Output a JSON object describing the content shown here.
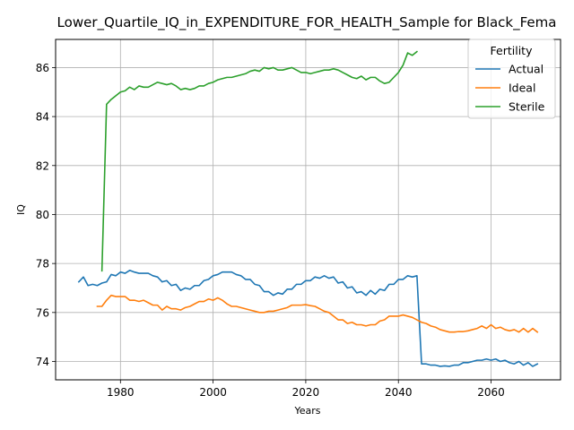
{
  "chart_data": {
    "type": "line",
    "title": "Lower_Quartile_IQ_in_EXPENDITURE_FOR_HEALTH_Sample for Black_Fema",
    "xlabel": "Years",
    "ylabel": "IQ",
    "xlim": [
      1966,
      2075
    ],
    "ylim": [
      73.25,
      87.15
    ],
    "xticks": [
      1980,
      2000,
      2020,
      2040,
      2060
    ],
    "yticks": [
      74,
      76,
      78,
      80,
      82,
      84,
      86
    ],
    "grid": true,
    "legend": {
      "title": "Fertility",
      "placement": "top-right"
    },
    "series": [
      {
        "name": "Actual",
        "color": "#1f77b4",
        "x": [
          1971,
          1972,
          1973,
          1974,
          1975,
          1976,
          1977,
          1978,
          1979,
          1980,
          1981,
          1982,
          1983,
          1984,
          1985,
          1986,
          1987,
          1988,
          1989,
          1990,
          1991,
          1992,
          1993,
          1994,
          1995,
          1996,
          1997,
          1998,
          1999,
          2000,
          2001,
          2002,
          2003,
          2004,
          2005,
          2006,
          2007,
          2008,
          2009,
          2010,
          2011,
          2012,
          2013,
          2014,
          2015,
          2016,
          2017,
          2018,
          2019,
          2020,
          2021,
          2022,
          2023,
          2024,
          2025,
          2026,
          2027,
          2028,
          2029,
          2030,
          2031,
          2032,
          2033,
          2034,
          2035,
          2036,
          2037,
          2038,
          2039,
          2040,
          2041,
          2042,
          2043,
          2044,
          2045,
          2046,
          2047,
          2048,
          2049,
          2050,
          2051,
          2052,
          2053,
          2054,
          2055,
          2056,
          2057,
          2058,
          2059,
          2060,
          2061,
          2062,
          2063,
          2064,
          2065,
          2066,
          2067,
          2068,
          2069,
          2070
        ],
        "values": [
          77.25,
          77.45,
          77.1,
          77.15,
          77.1,
          77.2,
          77.25,
          77.55,
          77.5,
          77.65,
          77.6,
          77.72,
          77.65,
          77.6,
          77.6,
          77.6,
          77.5,
          77.45,
          77.25,
          77.3,
          77.1,
          77.15,
          76.9,
          77.0,
          76.95,
          77.1,
          77.1,
          77.3,
          77.35,
          77.5,
          77.55,
          77.65,
          77.65,
          77.65,
          77.55,
          77.5,
          77.35,
          77.35,
          77.15,
          77.1,
          76.85,
          76.85,
          76.7,
          76.8,
          76.75,
          76.95,
          76.95,
          77.15,
          77.15,
          77.3,
          77.3,
          77.45,
          77.4,
          77.5,
          77.4,
          77.45,
          77.2,
          77.25,
          77.0,
          77.05,
          76.8,
          76.85,
          76.7,
          76.9,
          76.75,
          76.95,
          76.9,
          77.15,
          77.15,
          77.35,
          77.35,
          77.5,
          77.45,
          77.5,
          73.9,
          73.9,
          73.85,
          73.85,
          73.8,
          73.82,
          73.8,
          73.85,
          73.85,
          73.95,
          73.95,
          74.0,
          74.05,
          74.05,
          74.1,
          74.05,
          74.1,
          74.0,
          74.05,
          73.95,
          73.9,
          74.0,
          73.85,
          73.95,
          73.8,
          73.9
        ]
      },
      {
        "name": "Ideal",
        "color": "#ff7f0e",
        "x": [
          1975,
          1976,
          1977,
          1978,
          1979,
          1980,
          1981,
          1982,
          1983,
          1984,
          1985,
          1986,
          1987,
          1988,
          1989,
          1990,
          1991,
          1992,
          1993,
          1994,
          1995,
          1996,
          1997,
          1998,
          1999,
          2000,
          2001,
          2002,
          2003,
          2004,
          2005,
          2006,
          2007,
          2008,
          2009,
          2010,
          2011,
          2012,
          2013,
          2014,
          2015,
          2016,
          2017,
          2018,
          2019,
          2020,
          2021,
          2022,
          2023,
          2024,
          2025,
          2026,
          2027,
          2028,
          2029,
          2030,
          2031,
          2032,
          2033,
          2034,
          2035,
          2036,
          2037,
          2038,
          2039,
          2040,
          2041,
          2042,
          2043,
          2044,
          2045,
          2046,
          2047,
          2048,
          2049,
          2050,
          2051,
          2052,
          2053,
          2054,
          2055,
          2056,
          2057,
          2058,
          2059,
          2060,
          2061,
          2062,
          2063,
          2064,
          2065,
          2066,
          2067,
          2068,
          2069,
          2070
        ],
        "values": [
          76.25,
          76.25,
          76.5,
          76.7,
          76.65,
          76.65,
          76.65,
          76.5,
          76.5,
          76.45,
          76.5,
          76.4,
          76.3,
          76.3,
          76.1,
          76.25,
          76.15,
          76.15,
          76.1,
          76.2,
          76.25,
          76.35,
          76.45,
          76.45,
          76.55,
          76.5,
          76.6,
          76.5,
          76.35,
          76.25,
          76.25,
          76.2,
          76.15,
          76.1,
          76.05,
          76.0,
          76.0,
          76.05,
          76.05,
          76.1,
          76.15,
          76.2,
          76.3,
          76.3,
          76.3,
          76.32,
          76.28,
          76.25,
          76.15,
          76.05,
          76.0,
          75.85,
          75.7,
          75.7,
          75.55,
          75.6,
          75.5,
          75.5,
          75.45,
          75.5,
          75.5,
          75.65,
          75.7,
          75.85,
          75.85,
          75.85,
          75.9,
          75.85,
          75.8,
          75.7,
          75.6,
          75.55,
          75.45,
          75.4,
          75.3,
          75.25,
          75.2,
          75.2,
          75.22,
          75.22,
          75.25,
          75.3,
          75.35,
          75.45,
          75.35,
          75.5,
          75.35,
          75.4,
          75.3,
          75.25,
          75.3,
          75.2,
          75.35,
          75.2,
          75.35,
          75.2
        ]
      },
      {
        "name": "Sterile",
        "color": "#2ca02c",
        "x": [
          1976,
          1977,
          1978,
          1979,
          1980,
          1981,
          1982,
          1983,
          1984,
          1985,
          1986,
          1987,
          1988,
          1989,
          1990,
          1991,
          1992,
          1993,
          1994,
          1995,
          1996,
          1997,
          1998,
          1999,
          2000,
          2001,
          2002,
          2003,
          2004,
          2005,
          2006,
          2007,
          2008,
          2009,
          2010,
          2011,
          2012,
          2013,
          2014,
          2015,
          2016,
          2017,
          2018,
          2019,
          2020,
          2021,
          2022,
          2023,
          2024,
          2025,
          2026,
          2027,
          2028,
          2029,
          2030,
          2031,
          2032,
          2033,
          2034,
          2035,
          2036,
          2037,
          2038,
          2039,
          2040,
          2041,
          2042,
          2043,
          2044
        ],
        "values": [
          77.7,
          84.5,
          84.7,
          84.85,
          85.0,
          85.05,
          85.2,
          85.1,
          85.25,
          85.2,
          85.2,
          85.3,
          85.4,
          85.35,
          85.3,
          85.35,
          85.25,
          85.1,
          85.15,
          85.1,
          85.15,
          85.25,
          85.25,
          85.35,
          85.4,
          85.5,
          85.55,
          85.6,
          85.6,
          85.65,
          85.7,
          85.75,
          85.85,
          85.9,
          85.85,
          86.0,
          85.95,
          86.0,
          85.9,
          85.9,
          85.95,
          86.0,
          85.9,
          85.8,
          85.8,
          85.75,
          85.8,
          85.85,
          85.9,
          85.9,
          85.95,
          85.9,
          85.8,
          85.7,
          85.6,
          85.55,
          85.65,
          85.5,
          85.6,
          85.6,
          85.45,
          85.35,
          85.4,
          85.6,
          85.8,
          86.1,
          86.6,
          86.5,
          86.65
        ]
      }
    ]
  }
}
